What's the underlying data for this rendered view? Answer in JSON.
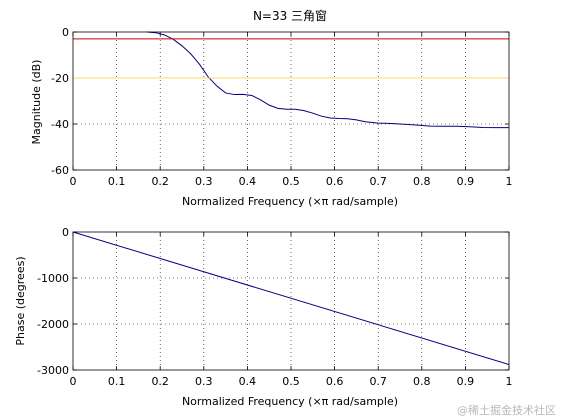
{
  "watermark": "@稀土掘金技术社区",
  "chart_data": [
    {
      "type": "line",
      "title": "N=33 三角窗",
      "xlabel": "Normalized Frequency  (×π rad/sample)",
      "ylabel": "Magnitude (dB)",
      "xlim": [
        0,
        1
      ],
      "ylim": [
        -60,
        0
      ],
      "xticks": [
        "0",
        "0.1",
        "0.2",
        "0.3",
        "0.4",
        "0.5",
        "0.6",
        "0.7",
        "0.8",
        "0.9",
        "1"
      ],
      "yticks": [
        "0",
        "-20",
        "-40",
        "-60"
      ],
      "grid": true,
      "series": [
        {
          "color": "#000080",
          "x": [
            0.17,
            0.19,
            0.21,
            0.23,
            0.25,
            0.27,
            0.29,
            0.31,
            0.33,
            0.35,
            0.37,
            0.39,
            0.41,
            0.43,
            0.45,
            0.47,
            0.49,
            0.51,
            0.53,
            0.55,
            0.57,
            0.59,
            0.61,
            0.63,
            0.65,
            0.67,
            0.7,
            0.73,
            0.76,
            0.79,
            0.82,
            0.85,
            0.88,
            0.91,
            0.94,
            0.97,
            1.0
          ],
          "y": [
            0,
            -0.3,
            -1.3,
            -3.2,
            -6,
            -9.5,
            -14,
            -19.5,
            -23.5,
            -26.5,
            -27.2,
            -27.1,
            -27.6,
            -29.5,
            -31.8,
            -33.2,
            -33.6,
            -33.6,
            -34.2,
            -35.3,
            -36.6,
            -37.4,
            -37.6,
            -37.7,
            -38.2,
            -39,
            -39.6,
            -39.8,
            -40.1,
            -40.5,
            -40.9,
            -41,
            -41,
            -41.2,
            -41.5,
            -41.6,
            -41.6
          ]
        },
        {
          "color": "#cc0000",
          "x": [
            0,
            1
          ],
          "y": [
            -3,
            -3
          ]
        },
        {
          "color": "#ffd966",
          "x": [
            0,
            1
          ],
          "y": [
            -20,
            -20
          ]
        }
      ]
    },
    {
      "type": "line",
      "title": "",
      "xlabel": "Normalized Frequency  (×π rad/sample)",
      "ylabel": "Phase (degrees)",
      "xlim": [
        0,
        1
      ],
      "ylim": [
        -3000,
        0
      ],
      "xticks": [
        "0",
        "0.1",
        "0.2",
        "0.3",
        "0.4",
        "0.5",
        "0.6",
        "0.7",
        "0.8",
        "0.9",
        "1"
      ],
      "yticks": [
        "0",
        "-1000",
        "-2000",
        "-3000"
      ],
      "grid": true,
      "series": [
        {
          "color": "#000080",
          "x": [
            0,
            1
          ],
          "y": [
            0,
            -2880
          ]
        }
      ]
    }
  ]
}
